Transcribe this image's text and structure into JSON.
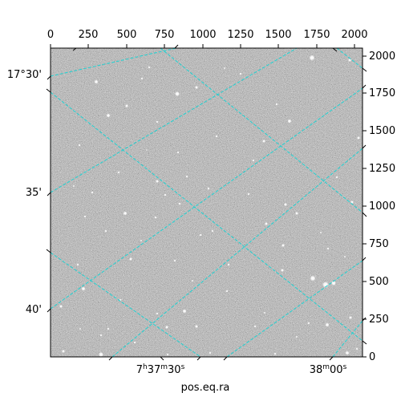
{
  "figure": {
    "image": "astronomical star field, grayscale with noise",
    "colors": {
      "sky_background": "#7d7d7d",
      "star": "#ffffff",
      "grid_line": "#22d1d1",
      "frame": "#000000"
    }
  },
  "pixel_axes": {
    "top_ticks": [
      "0",
      "250",
      "500",
      "750",
      "1000",
      "1250",
      "1500",
      "1750",
      "2000"
    ],
    "right_ticks": [
      "0",
      "250",
      "500",
      "750",
      "1000",
      "1250",
      "1500",
      "1750",
      "2000"
    ]
  },
  "world_axes": {
    "dec_ticks": [
      "17°30'",
      "35'",
      "40'"
    ],
    "ra_ticks": [
      {
        "base": "7",
        "h": "h",
        "m_val": "37",
        "m": "m",
        "s_val": "30",
        "s": "s"
      },
      {
        "base": "38",
        "m": "m",
        "s_val": "00",
        "s": "s"
      }
    ],
    "xlabel": "pos.eq.ra"
  }
}
